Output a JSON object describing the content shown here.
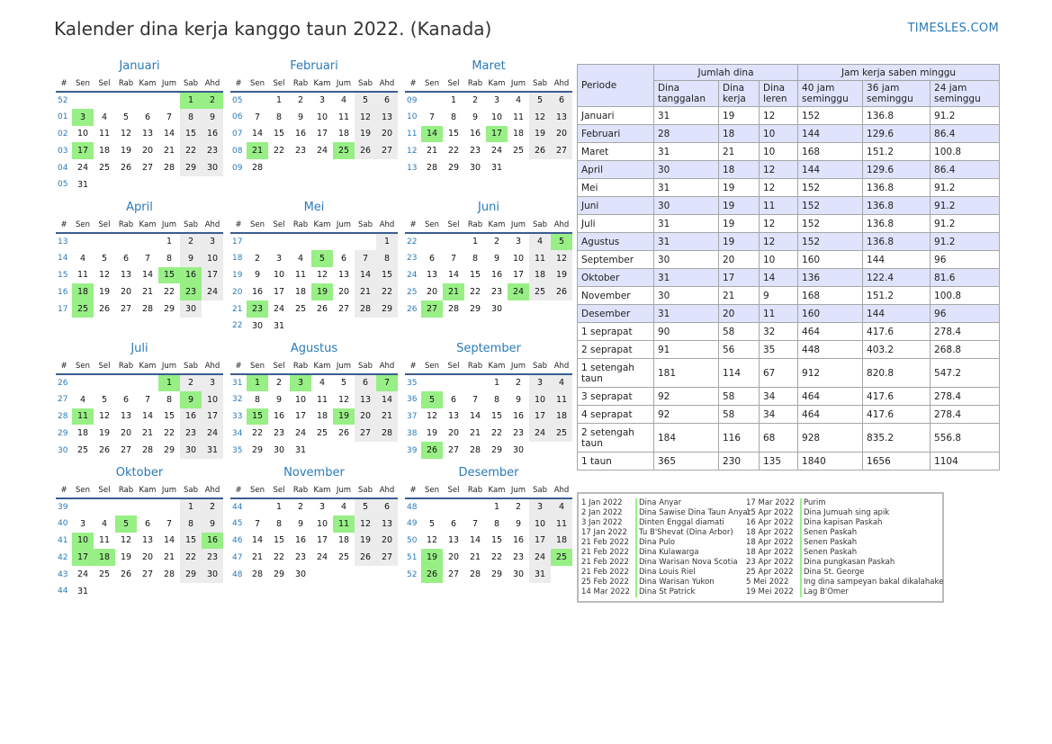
{
  "title": "Kalender dina kerja kanggo taun 2022. (Kanada)",
  "brand": "TIMESLES.COM",
  "colors": {
    "holiday": "#98ef86",
    "weekend": "#ececec",
    "accent": "#2a7ab9",
    "header_fill": "#dfe3fb"
  },
  "day_headers": [
    "#",
    "Sen",
    "Sel",
    "Rab",
    "Kam",
    "Jum",
    "Sab",
    "Ahd"
  ],
  "months": [
    {
      "name": "Januari",
      "weeks": [
        [
          "52",
          "",
          "",
          "",
          "",
          "",
          "1",
          "2"
        ],
        [
          "01",
          "3",
          "4",
          "5",
          "6",
          "7",
          "8",
          "9"
        ],
        [
          "02",
          "10",
          "11",
          "12",
          "13",
          "14",
          "15",
          "16"
        ],
        [
          "03",
          "17",
          "18",
          "19",
          "20",
          "21",
          "22",
          "23"
        ],
        [
          "04",
          "24",
          "25",
          "26",
          "27",
          "28",
          "29",
          "30"
        ],
        [
          "05",
          "31",
          "",
          "",
          "",
          "",
          "",
          ""
        ]
      ],
      "holidays": [
        "1",
        "2",
        "3",
        "17"
      ]
    },
    {
      "name": "Februari",
      "weeks": [
        [
          "05",
          "",
          "1",
          "2",
          "3",
          "4",
          "5",
          "6"
        ],
        [
          "06",
          "7",
          "8",
          "9",
          "10",
          "11",
          "12",
          "13"
        ],
        [
          "07",
          "14",
          "15",
          "16",
          "17",
          "18",
          "19",
          "20"
        ],
        [
          "08",
          "21",
          "22",
          "23",
          "24",
          "25",
          "26",
          "27"
        ],
        [
          "09",
          "28",
          "",
          "",
          "",
          "",
          "",
          ""
        ]
      ],
      "holidays": [
        "21",
        "25"
      ]
    },
    {
      "name": "Maret",
      "weeks": [
        [
          "09",
          "",
          "1",
          "2",
          "3",
          "4",
          "5",
          "6"
        ],
        [
          "10",
          "7",
          "8",
          "9",
          "10",
          "11",
          "12",
          "13"
        ],
        [
          "11",
          "14",
          "15",
          "16",
          "17",
          "18",
          "19",
          "20"
        ],
        [
          "12",
          "21",
          "22",
          "23",
          "24",
          "25",
          "26",
          "27"
        ],
        [
          "13",
          "28",
          "29",
          "30",
          "31",
          "",
          "",
          ""
        ]
      ],
      "holidays": [
        "14",
        "17"
      ]
    },
    {
      "name": "April",
      "weeks": [
        [
          "13",
          "",
          "",
          "",
          "",
          "1",
          "2",
          "3"
        ],
        [
          "14",
          "4",
          "5",
          "6",
          "7",
          "8",
          "9",
          "10"
        ],
        [
          "15",
          "11",
          "12",
          "13",
          "14",
          "15",
          "16",
          "17"
        ],
        [
          "16",
          "18",
          "19",
          "20",
          "21",
          "22",
          "23",
          "24"
        ],
        [
          "17",
          "25",
          "26",
          "27",
          "28",
          "29",
          "30",
          ""
        ]
      ],
      "holidays": [
        "15",
        "16",
        "18",
        "23",
        "25"
      ]
    },
    {
      "name": "Mei",
      "weeks": [
        [
          "17",
          "",
          "",
          "",
          "",
          "",
          "",
          "1"
        ],
        [
          "18",
          "2",
          "3",
          "4",
          "5",
          "6",
          "7",
          "8"
        ],
        [
          "19",
          "9",
          "10",
          "11",
          "12",
          "13",
          "14",
          "15"
        ],
        [
          "20",
          "16",
          "17",
          "18",
          "19",
          "20",
          "21",
          "22"
        ],
        [
          "21",
          "23",
          "24",
          "25",
          "26",
          "27",
          "28",
          "29"
        ],
        [
          "22",
          "30",
          "31",
          "",
          "",
          "",
          "",
          ""
        ]
      ],
      "holidays": [
        "5",
        "19",
        "23"
      ]
    },
    {
      "name": "Juni",
      "weeks": [
        [
          "22",
          "",
          "",
          "1",
          "2",
          "3",
          "4",
          "5"
        ],
        [
          "23",
          "6",
          "7",
          "8",
          "9",
          "10",
          "11",
          "12"
        ],
        [
          "24",
          "13",
          "14",
          "15",
          "16",
          "17",
          "18",
          "19"
        ],
        [
          "25",
          "20",
          "21",
          "22",
          "23",
          "24",
          "25",
          "26"
        ],
        [
          "26",
          "27",
          "28",
          "29",
          "30",
          "",
          "",
          ""
        ]
      ],
      "holidays": [
        "5",
        "21",
        "24",
        "27"
      ]
    },
    {
      "name": "Juli",
      "weeks": [
        [
          "26",
          "",
          "",
          "",
          "",
          "1",
          "2",
          "3"
        ],
        [
          "27",
          "4",
          "5",
          "6",
          "7",
          "8",
          "9",
          "10"
        ],
        [
          "28",
          "11",
          "12",
          "13",
          "14",
          "15",
          "16",
          "17"
        ],
        [
          "29",
          "18",
          "19",
          "20",
          "21",
          "22",
          "23",
          "24"
        ],
        [
          "30",
          "25",
          "26",
          "27",
          "28",
          "29",
          "30",
          "31"
        ]
      ],
      "holidays": [
        "1",
        "9",
        "11"
      ]
    },
    {
      "name": "Agustus",
      "weeks": [
        [
          "31",
          "1",
          "2",
          "3",
          "4",
          "5",
          "6",
          "7"
        ],
        [
          "32",
          "8",
          "9",
          "10",
          "11",
          "12",
          "13",
          "14"
        ],
        [
          "33",
          "15",
          "16",
          "17",
          "18",
          "19",
          "20",
          "21"
        ],
        [
          "34",
          "22",
          "23",
          "24",
          "25",
          "26",
          "27",
          "28"
        ],
        [
          "35",
          "29",
          "30",
          "31",
          "",
          "",
          "",
          ""
        ]
      ],
      "holidays": [
        "1",
        "3",
        "7",
        "15",
        "19"
      ]
    },
    {
      "name": "September",
      "weeks": [
        [
          "35",
          "",
          "",
          "",
          "1",
          "2",
          "3",
          "4"
        ],
        [
          "36",
          "5",
          "6",
          "7",
          "8",
          "9",
          "10",
          "11"
        ],
        [
          "37",
          "12",
          "13",
          "14",
          "15",
          "16",
          "17",
          "18"
        ],
        [
          "38",
          "19",
          "20",
          "21",
          "22",
          "23",
          "24",
          "25"
        ],
        [
          "39",
          "26",
          "27",
          "28",
          "29",
          "30",
          "",
          ""
        ]
      ],
      "holidays": [
        "5",
        "26"
      ]
    },
    {
      "name": "Oktober",
      "weeks": [
        [
          "39",
          "",
          "",
          "",
          "",
          "",
          "1",
          "2"
        ],
        [
          "40",
          "3",
          "4",
          "5",
          "6",
          "7",
          "8",
          "9"
        ],
        [
          "41",
          "10",
          "11",
          "12",
          "13",
          "14",
          "15",
          "16"
        ],
        [
          "42",
          "17",
          "18",
          "19",
          "20",
          "21",
          "22",
          "23"
        ],
        [
          "43",
          "24",
          "25",
          "26",
          "27",
          "28",
          "29",
          "30"
        ],
        [
          "44",
          "31",
          "",
          "",
          "",
          "",
          "",
          ""
        ]
      ],
      "holidays": [
        "5",
        "10",
        "16",
        "17",
        "18"
      ]
    },
    {
      "name": "November",
      "weeks": [
        [
          "44",
          "",
          "1",
          "2",
          "3",
          "4",
          "5",
          "6"
        ],
        [
          "45",
          "7",
          "8",
          "9",
          "10",
          "11",
          "12",
          "13"
        ],
        [
          "46",
          "14",
          "15",
          "16",
          "17",
          "18",
          "19",
          "20"
        ],
        [
          "47",
          "21",
          "22",
          "23",
          "24",
          "25",
          "26",
          "27"
        ],
        [
          "48",
          "28",
          "29",
          "30",
          "",
          "",
          "",
          ""
        ]
      ],
      "holidays": [
        "11"
      ]
    },
    {
      "name": "Desember",
      "weeks": [
        [
          "48",
          "",
          "",
          "",
          "1",
          "2",
          "3",
          "4"
        ],
        [
          "49",
          "5",
          "6",
          "7",
          "8",
          "9",
          "10",
          "11"
        ],
        [
          "50",
          "12",
          "13",
          "14",
          "15",
          "16",
          "17",
          "18"
        ],
        [
          "51",
          "19",
          "20",
          "21",
          "22",
          "23",
          "24",
          "25"
        ],
        [
          "52",
          "26",
          "27",
          "28",
          "29",
          "30",
          "31",
          ""
        ]
      ],
      "holidays": [
        "19",
        "25",
        "26"
      ]
    }
  ],
  "hours_table": {
    "period_header": "Periode",
    "days_group": "Jumlah dina",
    "hours_group": "Jam kerja saben minggu",
    "columns": [
      "Dina tanggalan",
      "Dina kerja",
      "Dina leren",
      "40 jam seminggu",
      "36 jam seminggu",
      "24 jam seminggu"
    ],
    "rows": [
      [
        "Januari",
        "31",
        "19",
        "12",
        "152",
        "136.8",
        "91.2"
      ],
      [
        "Februari",
        "28",
        "18",
        "10",
        "144",
        "129.6",
        "86.4"
      ],
      [
        "Maret",
        "31",
        "21",
        "10",
        "168",
        "151.2",
        "100.8"
      ],
      [
        "April",
        "30",
        "18",
        "12",
        "144",
        "129.6",
        "86.4"
      ],
      [
        "Mei",
        "31",
        "19",
        "12",
        "152",
        "136.8",
        "91.2"
      ],
      [
        "Juni",
        "30",
        "19",
        "11",
        "152",
        "136.8",
        "91.2"
      ],
      [
        "Juli",
        "31",
        "19",
        "12",
        "152",
        "136.8",
        "91.2"
      ],
      [
        "Agustus",
        "31",
        "19",
        "12",
        "152",
        "136.8",
        "91.2"
      ],
      [
        "September",
        "30",
        "20",
        "10",
        "160",
        "144",
        "96"
      ],
      [
        "Oktober",
        "31",
        "17",
        "14",
        "136",
        "122.4",
        "81.6"
      ],
      [
        "November",
        "30",
        "21",
        "9",
        "168",
        "151.2",
        "100.8"
      ],
      [
        "Desember",
        "31",
        "20",
        "11",
        "160",
        "144",
        "96"
      ],
      [
        "1 seprapat",
        "90",
        "58",
        "32",
        "464",
        "417.6",
        "278.4"
      ],
      [
        "2 seprapat",
        "91",
        "56",
        "35",
        "448",
        "403.2",
        "268.8"
      ],
      [
        "1 setengah taun",
        "181",
        "114",
        "67",
        "912",
        "820.8",
        "547.2"
      ],
      [
        "3 seprapat",
        "92",
        "58",
        "34",
        "464",
        "417.6",
        "278.4"
      ],
      [
        "4 seprapat",
        "92",
        "58",
        "34",
        "464",
        "417.6",
        "278.4"
      ],
      [
        "2 setengah taun",
        "184",
        "116",
        "68",
        "928",
        "835.2",
        "556.8"
      ],
      [
        "1 taun",
        "365",
        "230",
        "135",
        "1840",
        "1656",
        "1104"
      ]
    ]
  },
  "holidays": [
    [
      "1 Jan 2022",
      "Dina Anyar"
    ],
    [
      "2 Jan 2022",
      "Dina Sawise Dina Taun Anyar"
    ],
    [
      "3 Jan 2022",
      "Dinten Enggal diamati"
    ],
    [
      "17 Jan 2022",
      "Tu B'Shevat (Dina Arbor)"
    ],
    [
      "21 Feb 2022",
      "Dina Pulo"
    ],
    [
      "21 Feb 2022",
      "Dina Kulawarga"
    ],
    [
      "21 Feb 2022",
      "Dina Warisan Nova Scotia"
    ],
    [
      "21 Feb 2022",
      "Dina Louis Riel"
    ],
    [
      "25 Feb 2022",
      "Dina Warisan Yukon"
    ],
    [
      "14 Mar 2022",
      "Dina St Patrick"
    ],
    [
      "17 Mar 2022",
      "Purim"
    ],
    [
      "15 Apr 2022",
      "Dina Jumuah sing apik"
    ],
    [
      "16 Apr 2022",
      "Dina kapisan Paskah"
    ],
    [
      "18 Apr 2022",
      "Senen Paskah"
    ],
    [
      "18 Apr 2022",
      "Senen Paskah"
    ],
    [
      "18 Apr 2022",
      "Senen Paskah"
    ],
    [
      "23 Apr 2022",
      "Dina pungkasan Paskah"
    ],
    [
      "25 Apr 2022",
      "Dina St. George"
    ],
    [
      "5 Mei 2022",
      "Ing dina sampeyan bakal dikalahake"
    ],
    [
      "19 Mei 2022",
      "Lag B'Omer"
    ]
  ]
}
